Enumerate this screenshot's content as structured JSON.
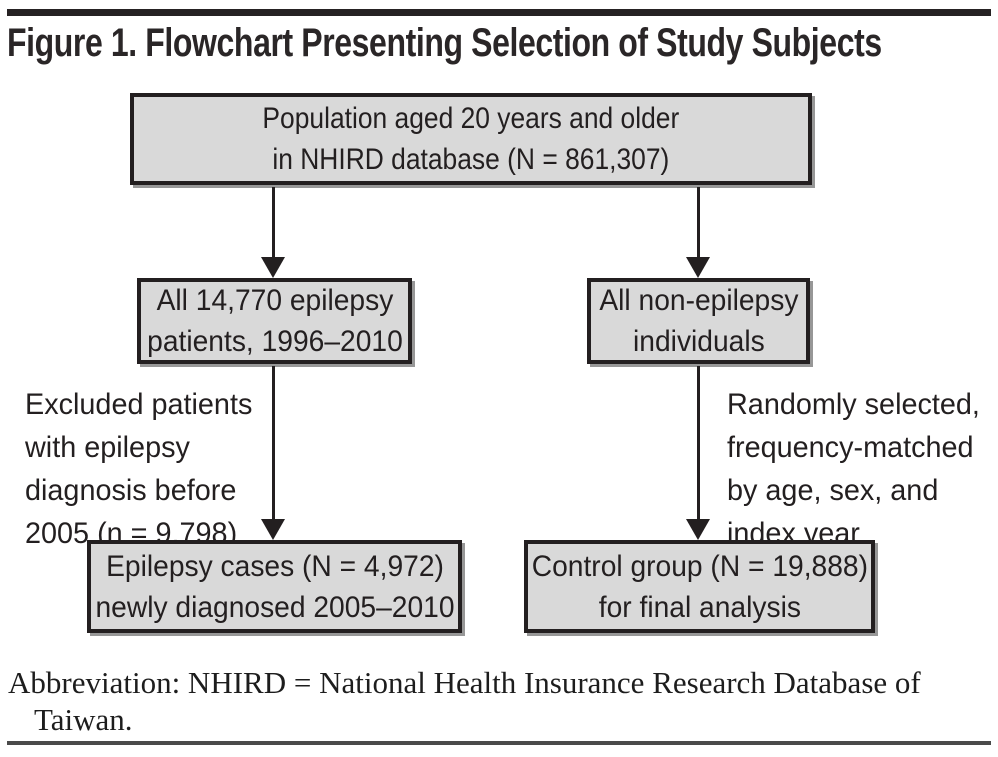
{
  "title": "Figure 1. Flowchart Presenting Selection of Study Subjects",
  "flowchart": {
    "boxes": {
      "population": {
        "lines": [
          "Population aged 20 years and older",
          "in NHIRD database (N = 861,307)"
        ]
      },
      "epilepsy": {
        "lines": [
          "All 14,770 epilepsy",
          "patients, 1996–2010"
        ]
      },
      "non_epilepsy": {
        "lines": [
          "All non-epilepsy",
          "individuals"
        ]
      },
      "cases": {
        "lines": [
          "Epilepsy cases (N = 4,972)",
          "newly diagnosed 2005–2010"
        ]
      },
      "control": {
        "lines": [
          "Control group (N = 19,888)",
          "for final analysis"
        ]
      }
    },
    "annotations": {
      "excluded": {
        "lines": [
          "Excluded patients",
          "with epilepsy",
          "diagnosis before",
          "2005 (n = 9,798)"
        ]
      },
      "matching": {
        "lines": [
          "Randomly selected,",
          "frequency-matched",
          "by age, sex, and",
          "index year"
        ]
      }
    }
  },
  "footnote": {
    "line1": "Abbreviation: NHIRD = National Health Insurance Research Database of",
    "line2": "Taiwan."
  },
  "colors": {
    "box_fill": "#d9d9d9",
    "box_border": "#231f20",
    "text": "#231f20",
    "top_rule": "#262223",
    "bottom_rule": "#4a4a4a"
  }
}
